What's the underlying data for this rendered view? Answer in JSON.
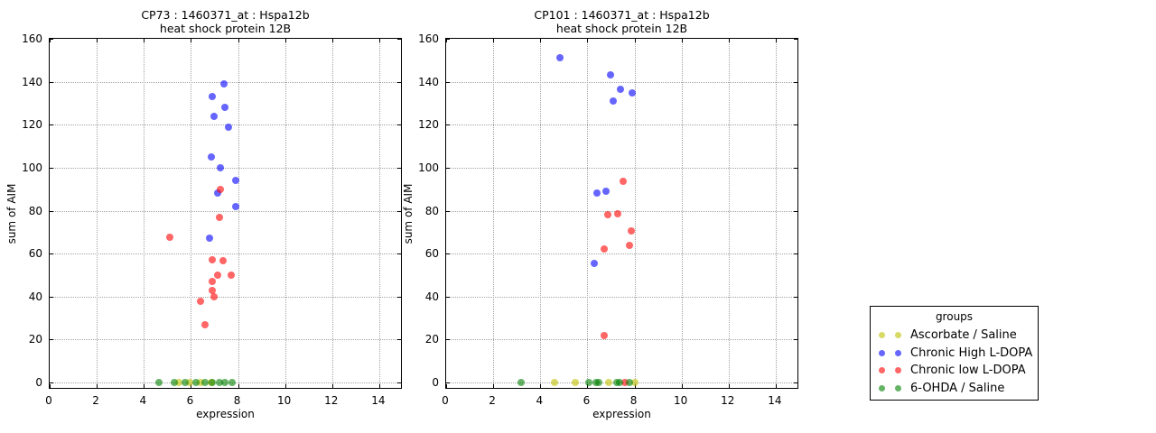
{
  "legend": {
    "title": "groups",
    "entries": [
      {
        "label": "Ascorbate / Saline",
        "color": "#bfbf00"
      },
      {
        "label": "Chronic High L-DOPA",
        "color": "#0000ff"
      },
      {
        "label": "Chronic low L-DOPA",
        "color": "#ff0000"
      },
      {
        "label": "6-OHDA / Saline",
        "color": "#008000"
      }
    ]
  },
  "chart_data": [
    {
      "type": "scatter",
      "id": "CP73",
      "title_line1": "CP73 : 1460371_at : Hspa12b",
      "title_line2": "heat shock protein 12B",
      "xlabel": "expression",
      "ylabel": "sum of AIM",
      "xlim": [
        0,
        15
      ],
      "ylim": [
        0,
        160
      ],
      "xticks": [
        0,
        2,
        4,
        6,
        8,
        10,
        12,
        14
      ],
      "yticks": [
        0,
        20,
        40,
        60,
        80,
        100,
        120,
        140,
        160
      ],
      "grid": true,
      "legend_position": "outside-right",
      "series": [
        {
          "name": "Ascorbate / Saline",
          "color": "#bfbf00",
          "points": [
            [
              5.5,
              0
            ],
            [
              5.95,
              0
            ],
            [
              6.4,
              0
            ],
            [
              6.85,
              0
            ]
          ]
        },
        {
          "name": "Chronic High L-DOPA",
          "color": "#0000ff",
          "points": [
            [
              7.4,
              139
            ],
            [
              6.9,
              133
            ],
            [
              7.45,
              128
            ],
            [
              7.0,
              124
            ],
            [
              7.6,
              119
            ],
            [
              6.85,
              105
            ],
            [
              7.25,
              100
            ],
            [
              7.9,
              94
            ],
            [
              7.15,
              88
            ],
            [
              7.9,
              82
            ],
            [
              6.8,
              67
            ]
          ]
        },
        {
          "name": "Chronic low L-DOPA",
          "color": "#ff0000",
          "points": [
            [
              7.25,
              90
            ],
            [
              7.2,
              77
            ],
            [
              5.1,
              67.5
            ],
            [
              6.9,
              57
            ],
            [
              7.35,
              56.5
            ],
            [
              7.15,
              50
            ],
            [
              7.7,
              50
            ],
            [
              6.9,
              47
            ],
            [
              6.9,
              43
            ],
            [
              7.0,
              40
            ],
            [
              6.4,
              38
            ],
            [
              6.6,
              27
            ]
          ]
        },
        {
          "name": "6-OHDA / Saline",
          "color": "#008000",
          "points": [
            [
              4.65,
              0
            ],
            [
              5.3,
              0
            ],
            [
              5.75,
              0
            ],
            [
              6.2,
              0
            ],
            [
              6.6,
              0
            ],
            [
              6.9,
              0
            ],
            [
              7.2,
              0
            ],
            [
              7.45,
              0
            ],
            [
              7.75,
              0
            ]
          ]
        }
      ]
    },
    {
      "type": "scatter",
      "id": "CP101",
      "title_line1": "CP101 : 1460371_at : Hspa12b",
      "title_line2": "heat shock protein 12B",
      "xlabel": "expression",
      "ylabel": "sum of AIM",
      "xlim": [
        0,
        15
      ],
      "ylim": [
        0,
        160
      ],
      "xticks": [
        0,
        2,
        4,
        6,
        8,
        10,
        12,
        14
      ],
      "yticks": [
        0,
        20,
        40,
        60,
        80,
        100,
        120,
        140,
        160
      ],
      "grid": true,
      "legend_position": "outside-right",
      "series": [
        {
          "name": "Ascorbate / Saline",
          "color": "#bfbf00",
          "points": [
            [
              4.6,
              0
            ],
            [
              5.5,
              0
            ],
            [
              6.9,
              0
            ],
            [
              8.0,
              0
            ]
          ]
        },
        {
          "name": "Chronic High L-DOPA",
          "color": "#0000ff",
          "points": [
            [
              4.85,
              151
            ],
            [
              7.0,
              143
            ],
            [
              7.4,
              136.5
            ],
            [
              7.9,
              135
            ],
            [
              7.1,
              131
            ],
            [
              6.8,
              89
            ],
            [
              6.4,
              88
            ],
            [
              6.3,
              55.5
            ]
          ]
        },
        {
          "name": "Chronic low L-DOPA",
          "color": "#ff0000",
          "points": [
            [
              7.5,
              93.5
            ],
            [
              6.85,
              78
            ],
            [
              7.3,
              78.5
            ],
            [
              7.85,
              70.5
            ],
            [
              7.8,
              64
            ],
            [
              6.7,
              62
            ],
            [
              6.7,
              22
            ],
            [
              7.6,
              0
            ]
          ]
        },
        {
          "name": "6-OHDA / Saline",
          "color": "#008000",
          "points": [
            [
              3.2,
              0
            ],
            [
              6.05,
              0
            ],
            [
              6.38,
              0
            ],
            [
              6.5,
              0
            ],
            [
              7.25,
              0
            ],
            [
              7.35,
              0
            ],
            [
              7.8,
              0
            ]
          ]
        }
      ]
    }
  ]
}
